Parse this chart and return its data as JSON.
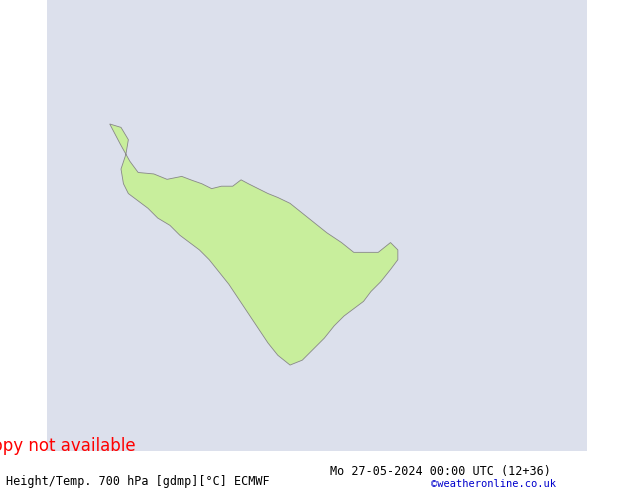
{
  "title_left": "Height/Temp. 700 hPa [gdmp][°C] ECMWF",
  "title_right": "Mo 27-05-2024 00:00 UTC (12+36)",
  "credit": "©weatheronline.co.uk",
  "fig_width": 6.34,
  "fig_height": 4.9,
  "dpi": 100,
  "ocean_color": "#dce0ec",
  "land_color": "#c8ee9c",
  "border_color": "#aaaaaa",
  "font_size_title": 8.5,
  "font_size_credit": 7.5
}
